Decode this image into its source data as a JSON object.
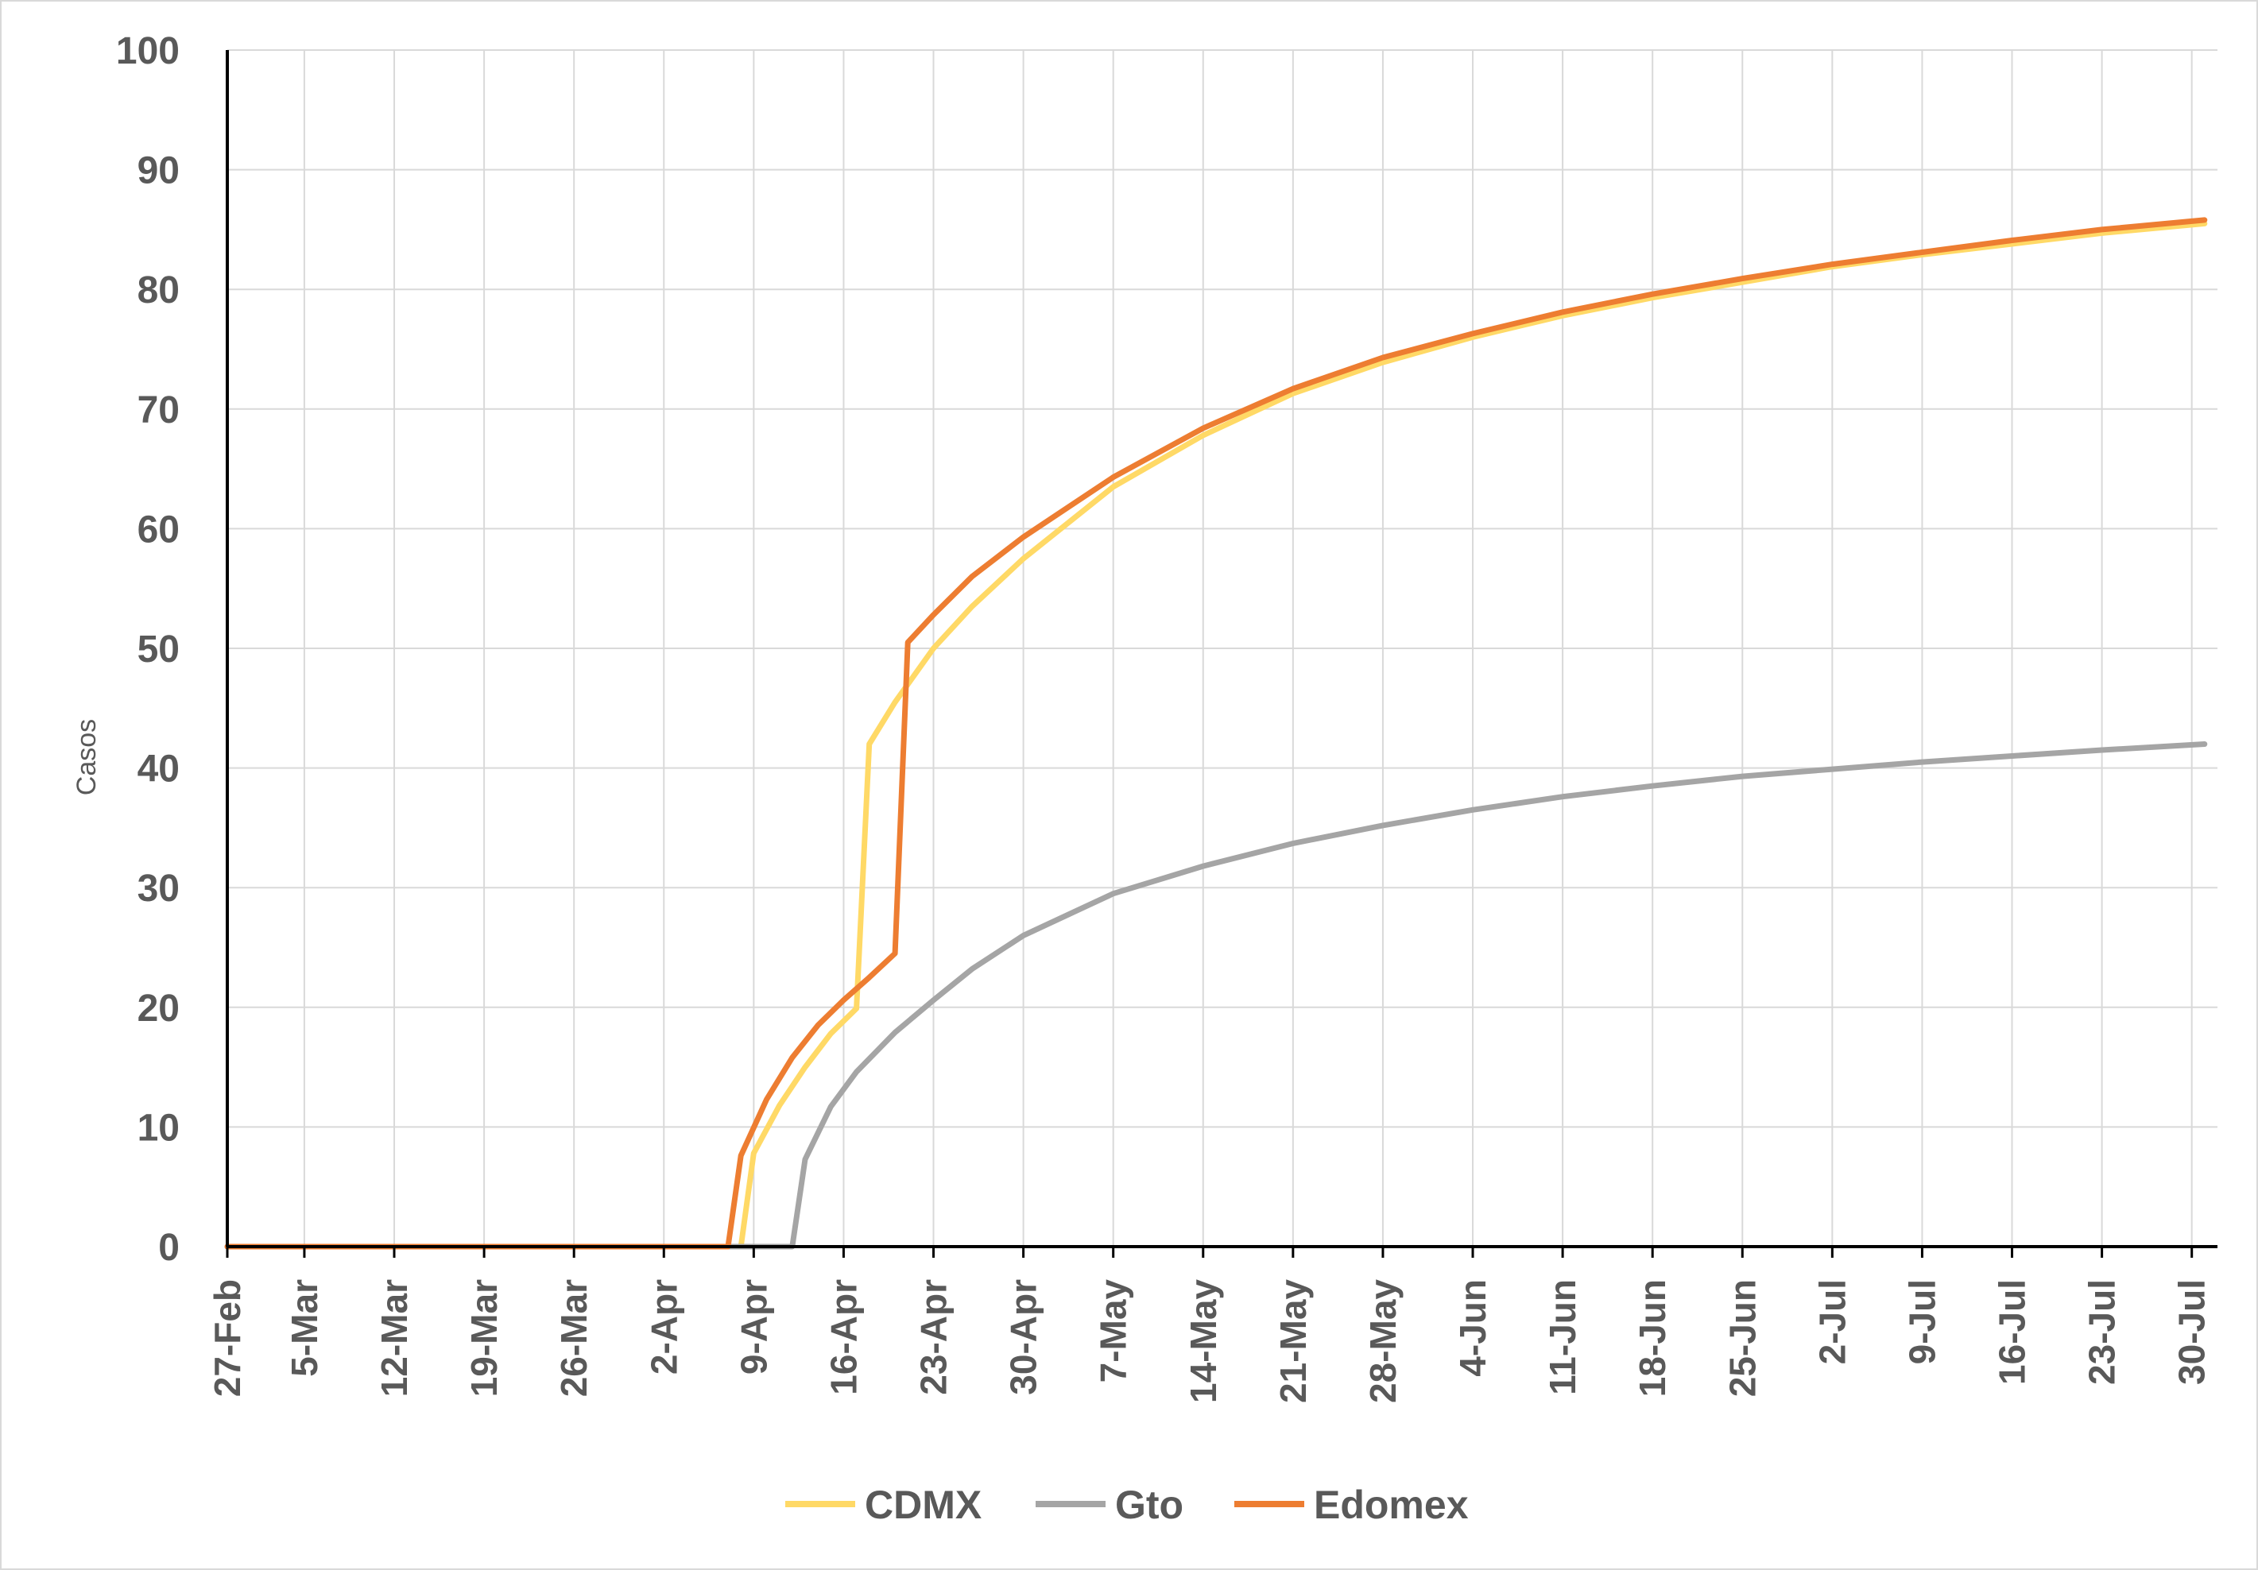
{
  "chart_data": {
    "type": "line",
    "title": "",
    "xlabel": "",
    "ylabel": "Casos",
    "ylim": [
      0,
      100
    ],
    "y_ticks": [
      "0",
      "10",
      "20",
      "30",
      "40",
      "50",
      "60",
      "70",
      "80",
      "90",
      "100"
    ],
    "x_range": [
      "27-Feb",
      "1-Aug"
    ],
    "x_ticks": [
      "27-Feb",
      "5-Mar",
      "12-Mar",
      "19-Mar",
      "26-Mar",
      "2-Apr",
      "9-Apr",
      "16-Apr",
      "23-Apr",
      "30-Apr",
      "7-May",
      "14-May",
      "21-May",
      "28-May",
      "4-Jun",
      "11-Jun",
      "18-Jun",
      "25-Jun",
      "2-Jul",
      "9-Jul",
      "16-Jul",
      "23-Jul",
      "30-Jul"
    ],
    "grid": true,
    "legend_position": "bottom",
    "series": [
      {
        "name": "CDMX",
        "color": "#ffd966",
        "points": [
          [
            "27-Feb",
            0
          ],
          [
            "8-Apr",
            0
          ],
          [
            "9-Apr",
            7.8
          ],
          [
            "11-Apr",
            11.8
          ],
          [
            "13-Apr",
            15.0
          ],
          [
            "15-Apr",
            17.8
          ],
          [
            "17-Apr",
            19.9
          ],
          [
            "18-Apr",
            42.0
          ],
          [
            "20-Apr",
            45.5
          ],
          [
            "23-Apr",
            50.0
          ],
          [
            "26-Apr",
            53.5
          ],
          [
            "30-Apr",
            57.5
          ],
          [
            "7-May",
            63.5
          ],
          [
            "14-May",
            67.8
          ],
          [
            "21-May",
            71.3
          ],
          [
            "28-May",
            73.9
          ],
          [
            "4-Jun",
            76.0
          ],
          [
            "11-Jun",
            77.8
          ],
          [
            "18-Jun",
            79.3
          ],
          [
            "25-Jun",
            80.6
          ],
          [
            "2-Jul",
            81.9
          ],
          [
            "9-Jul",
            82.9
          ],
          [
            "16-Jul",
            83.8
          ],
          [
            "23-Jul",
            84.7
          ],
          [
            "31-Jul",
            85.5
          ]
        ]
      },
      {
        "name": "Gto",
        "color": "#a5a5a5",
        "points": [
          [
            "27-Feb",
            0
          ],
          [
            "12-Apr",
            0
          ],
          [
            "13-Apr",
            7.3
          ],
          [
            "15-Apr",
            11.7
          ],
          [
            "17-Apr",
            14.6
          ],
          [
            "20-Apr",
            17.9
          ],
          [
            "23-Apr",
            20.6
          ],
          [
            "26-Apr",
            23.2
          ],
          [
            "30-Apr",
            26.0
          ],
          [
            "7-May",
            29.5
          ],
          [
            "14-May",
            31.8
          ],
          [
            "21-May",
            33.7
          ],
          [
            "28-May",
            35.2
          ],
          [
            "4-Jun",
            36.5
          ],
          [
            "11-Jun",
            37.6
          ],
          [
            "18-Jun",
            38.5
          ],
          [
            "25-Jun",
            39.3
          ],
          [
            "2-Jul",
            39.9
          ],
          [
            "9-Jul",
            40.5
          ],
          [
            "16-Jul",
            41.0
          ],
          [
            "23-Jul",
            41.5
          ],
          [
            "31-Jul",
            42.0
          ]
        ]
      },
      {
        "name": "Edomex",
        "color": "#ed7d31",
        "points": [
          [
            "27-Feb",
            0
          ],
          [
            "7-Apr",
            0
          ],
          [
            "8-Apr",
            7.6
          ],
          [
            "10-Apr",
            12.3
          ],
          [
            "12-Apr",
            15.8
          ],
          [
            "14-Apr",
            18.5
          ],
          [
            "16-Apr",
            20.6
          ],
          [
            "18-Apr",
            22.5
          ],
          [
            "20-Apr",
            24.5
          ],
          [
            "21-Apr",
            50.5
          ],
          [
            "23-Apr",
            52.8
          ],
          [
            "26-Apr",
            56.0
          ],
          [
            "30-Apr",
            59.3
          ],
          [
            "7-May",
            64.3
          ],
          [
            "14-May",
            68.4
          ],
          [
            "21-May",
            71.7
          ],
          [
            "28-May",
            74.3
          ],
          [
            "4-Jun",
            76.3
          ],
          [
            "11-Jun",
            78.1
          ],
          [
            "18-Jun",
            79.6
          ],
          [
            "25-Jun",
            80.9
          ],
          [
            "2-Jul",
            82.1
          ],
          [
            "9-Jul",
            83.1
          ],
          [
            "16-Jul",
            84.1
          ],
          [
            "23-Jul",
            85.0
          ],
          [
            "31-Jul",
            85.8
          ]
        ]
      }
    ]
  }
}
